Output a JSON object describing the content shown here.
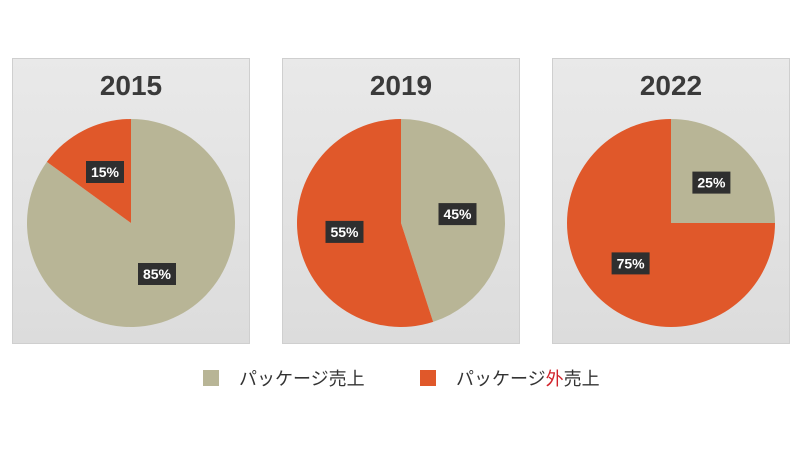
{
  "colors": {
    "package": "#b8b596",
    "nonpackage": "#e0582a",
    "label_bg": "#2f2f2f",
    "label_text": "#ffffff"
  },
  "chart_data": [
    {
      "type": "pie",
      "title": "2015",
      "slices": [
        {
          "label": "パッケージ売上",
          "value": 85,
          "text": "85%"
        },
        {
          "label": "パッケージ外売上",
          "value": 15,
          "text": "15%"
        }
      ]
    },
    {
      "type": "pie",
      "title": "2019",
      "slices": [
        {
          "label": "パッケージ売上",
          "value": 45,
          "text": "45%"
        },
        {
          "label": "パッケージ外売上",
          "value": 55,
          "text": "55%"
        }
      ]
    },
    {
      "type": "pie",
      "title": "2022",
      "slices": [
        {
          "label": "パッケージ売上",
          "value": 25,
          "text": "25%"
        },
        {
          "label": "パッケージ外売上",
          "value": 75,
          "text": "75%"
        }
      ]
    }
  ],
  "legend": {
    "package_label": "パッケージ売上",
    "nonpackage_prefix": "パッケージ",
    "nonpackage_highlight": "外",
    "nonpackage_suffix": "売上"
  }
}
